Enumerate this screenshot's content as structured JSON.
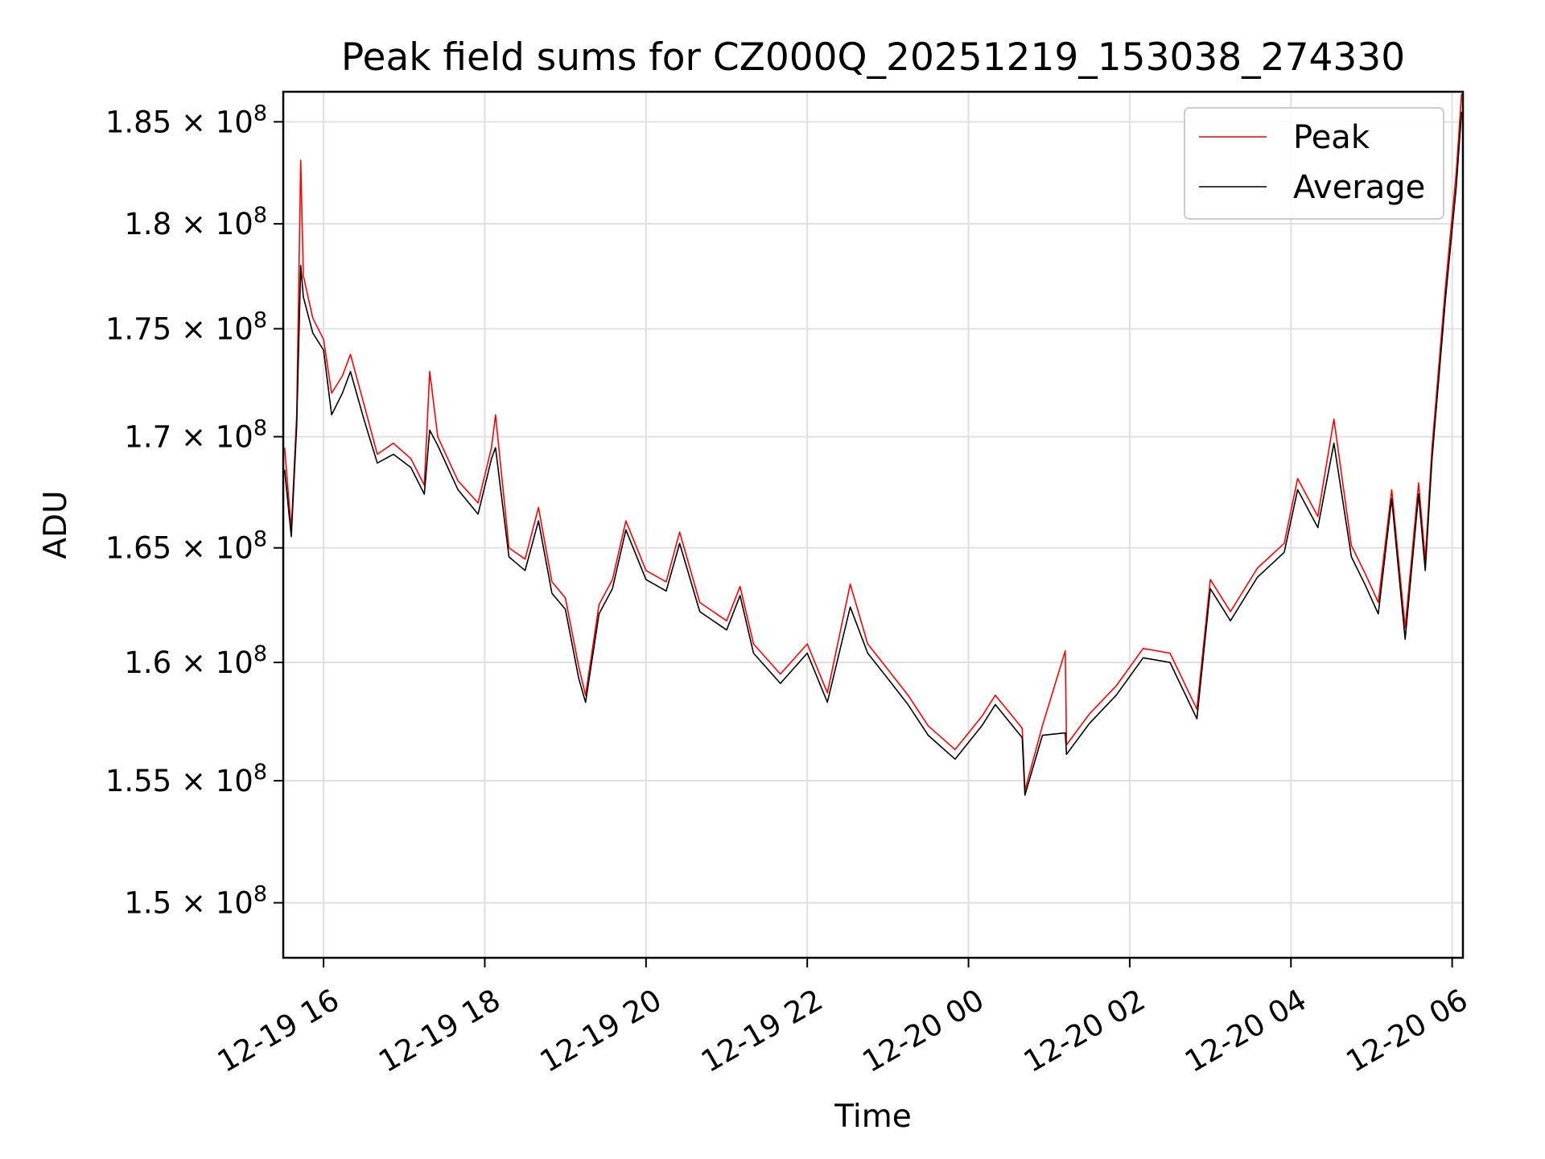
{
  "chart_data": {
    "type": "line",
    "title": "Peak field sums for CZ000Q_20251219_153038_274330",
    "xlabel": "Time",
    "ylabel": "ADU",
    "xlim": [
      "2025-12-19 15:30",
      "2025-12-20 06:08"
    ],
    "ylim": [
      147800000,
      186500000
    ],
    "yscale": "log",
    "grid": true,
    "legend_position": "top-right",
    "x_ticks": [
      {
        "value": "2025-12-19 16:00",
        "label": "12-19 16"
      },
      {
        "value": "2025-12-19 18:00",
        "label": "12-19 18"
      },
      {
        "value": "2025-12-19 20:00",
        "label": "12-19 20"
      },
      {
        "value": "2025-12-19 22:00",
        "label": "12-19 22"
      },
      {
        "value": "2025-12-20 00:00",
        "label": "12-20 00"
      },
      {
        "value": "2025-12-20 02:00",
        "label": "12-20 02"
      },
      {
        "value": "2025-12-20 04:00",
        "label": "12-20 04"
      },
      {
        "value": "2025-12-20 06:00",
        "label": "12-20 06"
      }
    ],
    "y_ticks": [
      {
        "value": 150000000,
        "mantissa": "1.5",
        "exponent": "8"
      },
      {
        "value": 155000000,
        "mantissa": "1.55",
        "exponent": "8"
      },
      {
        "value": 160000000,
        "mantissa": "1.6",
        "exponent": "8"
      },
      {
        "value": 165000000,
        "mantissa": "1.65",
        "exponent": "8"
      },
      {
        "value": 170000000,
        "mantissa": "1.7",
        "exponent": "8"
      },
      {
        "value": 175000000,
        "mantissa": "1.75",
        "exponent": "8"
      },
      {
        "value": 180000000,
        "mantissa": "1.8",
        "exponent": "8"
      },
      {
        "value": 185000000,
        "mantissa": "1.85",
        "exponent": "8"
      }
    ],
    "series": [
      {
        "name": "Peak",
        "color": "#ff0000",
        "points": [
          [
            "2025-12-19 15:31",
            169500000
          ],
          [
            "2025-12-19 15:36",
            165800000
          ],
          [
            "2025-12-19 15:40",
            171000000
          ],
          [
            "2025-12-19 15:43",
            183100000
          ],
          [
            "2025-12-19 15:45",
            177500000
          ],
          [
            "2025-12-19 15:52",
            175500000
          ],
          [
            "2025-12-19 16:00",
            174500000
          ],
          [
            "2025-12-19 16:06",
            172000000
          ],
          [
            "2025-12-19 16:14",
            172800000
          ],
          [
            "2025-12-19 16:20",
            173800000
          ],
          [
            "2025-12-19 16:30",
            171500000
          ],
          [
            "2025-12-19 16:40",
            169200000
          ],
          [
            "2025-12-19 16:52",
            169700000
          ],
          [
            "2025-12-19 17:05",
            169000000
          ],
          [
            "2025-12-19 17:15",
            167800000
          ],
          [
            "2025-12-19 17:19",
            173000000
          ],
          [
            "2025-12-19 17:25",
            170000000
          ],
          [
            "2025-12-19 17:40",
            168000000
          ],
          [
            "2025-12-19 17:55",
            167000000
          ],
          [
            "2025-12-19 18:05",
            169500000
          ],
          [
            "2025-12-19 18:08",
            171000000
          ],
          [
            "2025-12-19 18:18",
            165000000
          ],
          [
            "2025-12-19 18:30",
            164500000
          ],
          [
            "2025-12-19 18:40",
            166800000
          ],
          [
            "2025-12-19 18:50",
            163500000
          ],
          [
            "2025-12-19 19:00",
            162800000
          ],
          [
            "2025-12-19 19:10",
            159800000
          ],
          [
            "2025-12-19 19:15",
            158600000
          ],
          [
            "2025-12-19 19:25",
            162500000
          ],
          [
            "2025-12-19 19:35",
            163600000
          ],
          [
            "2025-12-19 19:45",
            166200000
          ],
          [
            "2025-12-19 20:00",
            164000000
          ],
          [
            "2025-12-19 20:15",
            163500000
          ],
          [
            "2025-12-19 20:25",
            165700000
          ],
          [
            "2025-12-19 20:40",
            162600000
          ],
          [
            "2025-12-19 21:00",
            161800000
          ],
          [
            "2025-12-19 21:10",
            163300000
          ],
          [
            "2025-12-19 21:20",
            160800000
          ],
          [
            "2025-12-19 21:40",
            159500000
          ],
          [
            "2025-12-19 22:00",
            160800000
          ],
          [
            "2025-12-19 22:15",
            158700000
          ],
          [
            "2025-12-19 22:32",
            163400000
          ],
          [
            "2025-12-19 22:45",
            160800000
          ],
          [
            "2025-12-19 23:00",
            159700000
          ],
          [
            "2025-12-19 23:15",
            158600000
          ],
          [
            "2025-12-19 23:30",
            157300000
          ],
          [
            "2025-12-19 23:50",
            156300000
          ],
          [
            "2025-12-20 00:10",
            157700000
          ],
          [
            "2025-12-20 00:20",
            158600000
          ],
          [
            "2025-12-20 00:40",
            157200000
          ],
          [
            "2025-12-20 00:42",
            154600000
          ],
          [
            "2025-12-20 00:55",
            157300000
          ],
          [
            "2025-12-20 01:12",
            160500000
          ],
          [
            "2025-12-20 01:13",
            156500000
          ],
          [
            "2025-12-20 01:30",
            157800000
          ],
          [
            "2025-12-20 01:50",
            159000000
          ],
          [
            "2025-12-20 02:10",
            160600000
          ],
          [
            "2025-12-20 02:30",
            160400000
          ],
          [
            "2025-12-20 02:50",
            158000000
          ],
          [
            "2025-12-20 03:00",
            163600000
          ],
          [
            "2025-12-20 03:15",
            162200000
          ],
          [
            "2025-12-20 03:35",
            164100000
          ],
          [
            "2025-12-20 03:55",
            165200000
          ],
          [
            "2025-12-20 04:05",
            168100000
          ],
          [
            "2025-12-20 04:20",
            166400000
          ],
          [
            "2025-12-20 04:32",
            170800000
          ],
          [
            "2025-12-20 04:45",
            165100000
          ],
          [
            "2025-12-20 04:55",
            163900000
          ],
          [
            "2025-12-20 05:05",
            162600000
          ],
          [
            "2025-12-20 05:15",
            167600000
          ],
          [
            "2025-12-20 05:25",
            161500000
          ],
          [
            "2025-12-20 05:35",
            167900000
          ],
          [
            "2025-12-20 05:40",
            164500000
          ],
          [
            "2025-12-20 05:45",
            169500000
          ],
          [
            "2025-12-20 05:55",
            177000000
          ],
          [
            "2025-12-20 06:03",
            182500000
          ],
          [
            "2025-12-20 06:07",
            186400000
          ]
        ]
      },
      {
        "name": "Average",
        "color": "#000000",
        "points": [
          [
            "2025-12-19 15:31",
            168500000
          ],
          [
            "2025-12-19 15:36",
            165500000
          ],
          [
            "2025-12-19 15:40",
            170500000
          ],
          [
            "2025-12-19 15:43",
            178000000
          ],
          [
            "2025-12-19 15:45",
            176500000
          ],
          [
            "2025-12-19 15:52",
            174800000
          ],
          [
            "2025-12-19 16:00",
            174000000
          ],
          [
            "2025-12-19 16:06",
            171000000
          ],
          [
            "2025-12-19 16:14",
            172000000
          ],
          [
            "2025-12-19 16:20",
            173000000
          ],
          [
            "2025-12-19 16:30",
            170800000
          ],
          [
            "2025-12-19 16:40",
            168800000
          ],
          [
            "2025-12-19 16:52",
            169200000
          ],
          [
            "2025-12-19 17:05",
            168600000
          ],
          [
            "2025-12-19 17:15",
            167400000
          ],
          [
            "2025-12-19 17:19",
            170300000
          ],
          [
            "2025-12-19 17:25",
            169600000
          ],
          [
            "2025-12-19 17:40",
            167600000
          ],
          [
            "2025-12-19 17:55",
            166500000
          ],
          [
            "2025-12-19 18:05",
            169000000
          ],
          [
            "2025-12-19 18:08",
            169500000
          ],
          [
            "2025-12-19 18:18",
            164600000
          ],
          [
            "2025-12-19 18:30",
            164000000
          ],
          [
            "2025-12-19 18:40",
            166200000
          ],
          [
            "2025-12-19 18:50",
            163000000
          ],
          [
            "2025-12-19 19:00",
            162300000
          ],
          [
            "2025-12-19 19:10",
            159300000
          ],
          [
            "2025-12-19 19:15",
            158300000
          ],
          [
            "2025-12-19 19:25",
            162100000
          ],
          [
            "2025-12-19 19:35",
            163200000
          ],
          [
            "2025-12-19 19:45",
            165800000
          ],
          [
            "2025-12-19 20:00",
            163600000
          ],
          [
            "2025-12-19 20:15",
            163100000
          ],
          [
            "2025-12-19 20:25",
            165200000
          ],
          [
            "2025-12-19 20:40",
            162200000
          ],
          [
            "2025-12-19 21:00",
            161400000
          ],
          [
            "2025-12-19 21:10",
            162900000
          ],
          [
            "2025-12-19 21:20",
            160400000
          ],
          [
            "2025-12-19 21:40",
            159100000
          ],
          [
            "2025-12-19 22:00",
            160400000
          ],
          [
            "2025-12-19 22:15",
            158300000
          ],
          [
            "2025-12-19 22:32",
            162400000
          ],
          [
            "2025-12-19 22:45",
            160400000
          ],
          [
            "2025-12-19 23:00",
            159300000
          ],
          [
            "2025-12-19 23:15",
            158200000
          ],
          [
            "2025-12-19 23:30",
            156900000
          ],
          [
            "2025-12-19 23:50",
            155900000
          ],
          [
            "2025-12-20 00:10",
            157300000
          ],
          [
            "2025-12-20 00:20",
            158200000
          ],
          [
            "2025-12-20 00:40",
            156800000
          ],
          [
            "2025-12-20 00:42",
            154400000
          ],
          [
            "2025-12-20 00:55",
            156900000
          ],
          [
            "2025-12-20 01:12",
            157000000
          ],
          [
            "2025-12-20 01:13",
            156100000
          ],
          [
            "2025-12-20 01:30",
            157400000
          ],
          [
            "2025-12-20 01:50",
            158600000
          ],
          [
            "2025-12-20 02:10",
            160200000
          ],
          [
            "2025-12-20 02:30",
            160000000
          ],
          [
            "2025-12-20 02:50",
            157600000
          ],
          [
            "2025-12-20 03:00",
            163200000
          ],
          [
            "2025-12-20 03:15",
            161800000
          ],
          [
            "2025-12-20 03:35",
            163700000
          ],
          [
            "2025-12-20 03:55",
            164800000
          ],
          [
            "2025-12-20 04:05",
            167600000
          ],
          [
            "2025-12-20 04:20",
            165900000
          ],
          [
            "2025-12-20 04:32",
            169700000
          ],
          [
            "2025-12-20 04:45",
            164600000
          ],
          [
            "2025-12-20 04:55",
            163400000
          ],
          [
            "2025-12-20 05:05",
            162100000
          ],
          [
            "2025-12-20 05:15",
            167200000
          ],
          [
            "2025-12-20 05:25",
            161000000
          ],
          [
            "2025-12-20 05:35",
            167400000
          ],
          [
            "2025-12-20 05:40",
            164000000
          ],
          [
            "2025-12-20 05:45",
            169000000
          ],
          [
            "2025-12-20 05:55",
            176400000
          ],
          [
            "2025-12-20 06:03",
            181800000
          ],
          [
            "2025-12-20 06:07",
            185500000
          ]
        ]
      }
    ]
  }
}
